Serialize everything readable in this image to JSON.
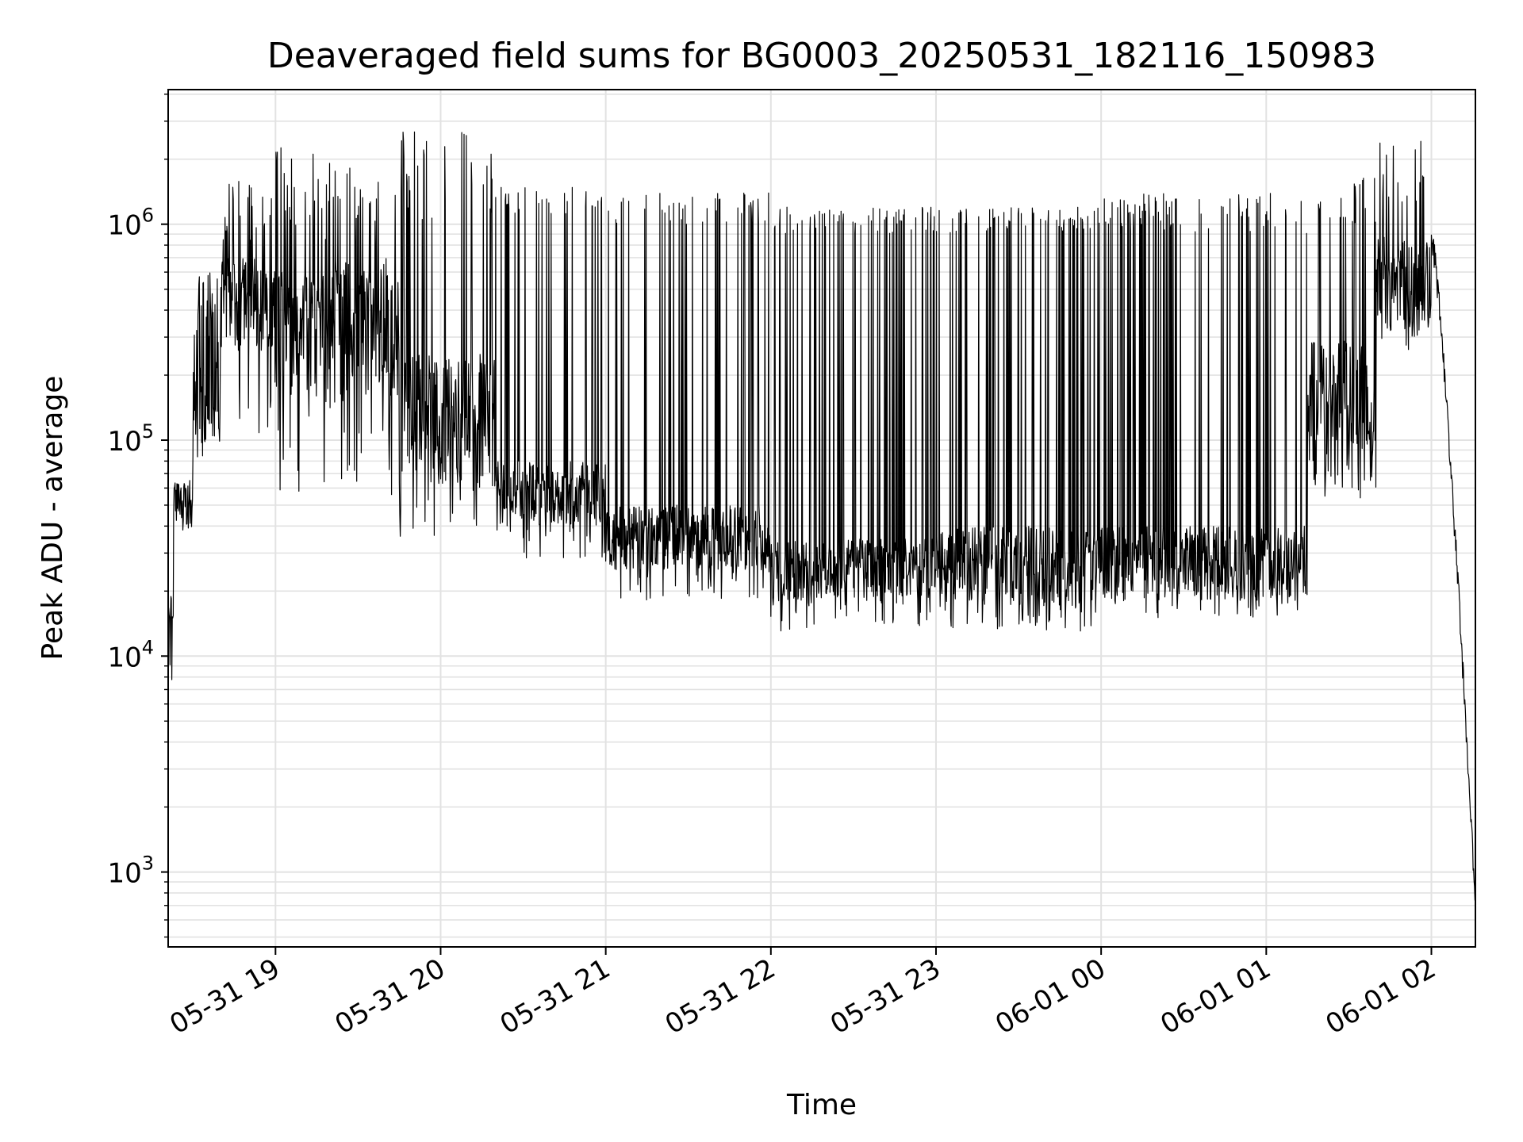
{
  "chart_data": {
    "type": "line",
    "title": "Deaveraged field sums for BG0003_20250531_182116_150983",
    "xlabel": "Time",
    "ylabel": "Peak ADU - average",
    "y_scale": "log",
    "ylim": [
      450,
      4200000
    ],
    "xlim": [
      "2025-05-31 18:21",
      "2025-06-01 02:16"
    ],
    "grid": true,
    "x_ticks": [
      {
        "value": "2025-05-31 19:00",
        "label": "05-31 19"
      },
      {
        "value": "2025-05-31 20:00",
        "label": "05-31 20"
      },
      {
        "value": "2025-05-31 21:00",
        "label": "05-31 21"
      },
      {
        "value": "2025-05-31 22:00",
        "label": "05-31 22"
      },
      {
        "value": "2025-05-31 23:00",
        "label": "05-31 23"
      },
      {
        "value": "2025-06-01 00:00",
        "label": "06-01 00"
      },
      {
        "value": "2025-06-01 01:00",
        "label": "06-01 01"
      },
      {
        "value": "2025-06-01 02:00",
        "label": "06-01 02"
      }
    ],
    "y_ticks": [
      {
        "value": 1000,
        "base": "10",
        "exp": "3"
      },
      {
        "value": 10000,
        "base": "10",
        "exp": "4"
      },
      {
        "value": 100000,
        "base": "10",
        "exp": "5"
      },
      {
        "value": 1000000,
        "base": "10",
        "exp": "6"
      }
    ],
    "series": [
      {
        "color": "#000000",
        "segments": [
          {
            "start": "2025-05-31 18:21",
            "end": "2025-05-31 18:23",
            "base": [
              15000,
              20000
            ],
            "peak": [
              16000,
              24000
            ],
            "dip": [
              7000,
              10000
            ]
          },
          {
            "start": "2025-05-31 18:23",
            "end": "2025-05-31 18:30",
            "base": [
              40000,
              65000
            ],
            "peak": [
              45000,
              70000
            ],
            "dip": [
              38000,
              42000
            ]
          },
          {
            "start": "2025-05-31 18:30",
            "end": "2025-05-31 18:40",
            "base": [
              80000,
              600000
            ],
            "peak": [
              100000,
              800000
            ],
            "dip": [
              80000,
              150000
            ]
          },
          {
            "start": "2025-05-31 18:40",
            "end": "2025-05-31 19:00",
            "base": [
              250000,
              700000
            ],
            "peak": [
              800000,
              1600000
            ],
            "dip": [
              90000,
              250000
            ]
          },
          {
            "start": "2025-05-31 19:00",
            "end": "2025-05-31 19:20",
            "base": [
              150000,
              600000
            ],
            "peak": [
              800000,
              2400000
            ],
            "dip": [
              50000,
              150000
            ]
          },
          {
            "start": "2025-05-31 19:20",
            "end": "2025-05-31 19:45",
            "base": [
              150000,
              700000
            ],
            "peak": [
              1000000,
              1900000
            ],
            "dip": [
              50000,
              120000
            ]
          },
          {
            "start": "2025-05-31 19:45",
            "end": "2025-05-31 20:20",
            "base": [
              60000,
              250000
            ],
            "peak": [
              1000000,
              2700000
            ],
            "dip": [
              35000,
              60000
            ]
          },
          {
            "start": "2025-05-31 20:20",
            "end": "2025-05-31 21:00",
            "base": [
              40000,
              80000
            ],
            "peak": [
              1100000,
              1500000
            ],
            "dip": [
              27000,
              40000
            ]
          },
          {
            "start": "2025-05-31 21:00",
            "end": "2025-05-31 22:00",
            "base": [
              25000,
              50000
            ],
            "peak": [
              1000000,
              1400000
            ],
            "dip": [
              18000,
              25000
            ]
          },
          {
            "start": "2025-05-31 22:00",
            "end": "2025-05-31 23:00",
            "base": [
              18000,
              35000
            ],
            "peak": [
              900000,
              1200000
            ],
            "dip": [
              13000,
              18000
            ]
          },
          {
            "start": "2025-05-31 23:00",
            "end": "2025-06-01 00:00",
            "base": [
              17000,
              40000
            ],
            "peak": [
              900000,
              1200000
            ],
            "dip": [
              13000,
              17000
            ]
          },
          {
            "start": "2025-06-01 00:00",
            "end": "2025-06-01 01:15",
            "base": [
              18000,
              40000
            ],
            "peak": [
              900000,
              1400000
            ],
            "dip": [
              15000,
              20000
            ]
          },
          {
            "start": "2025-06-01 01:15",
            "end": "2025-06-01 01:40",
            "base": [
              60000,
              300000
            ],
            "peak": [
              1000000,
              1700000
            ],
            "dip": [
              50000,
              100000
            ]
          },
          {
            "start": "2025-06-01 01:40",
            "end": "2025-06-01 02:00",
            "base": [
              300000,
              900000
            ],
            "peak": [
              1200000,
              2700000
            ],
            "dip": [
              250000,
              400000
            ]
          },
          {
            "start": "2025-06-01 02:00",
            "end": "2025-06-01 02:16",
            "base": [
              700,
              900000
            ],
            "peak": [
              800,
              950000
            ],
            "dip": [
              700,
              800000
            ]
          }
        ]
      }
    ]
  }
}
